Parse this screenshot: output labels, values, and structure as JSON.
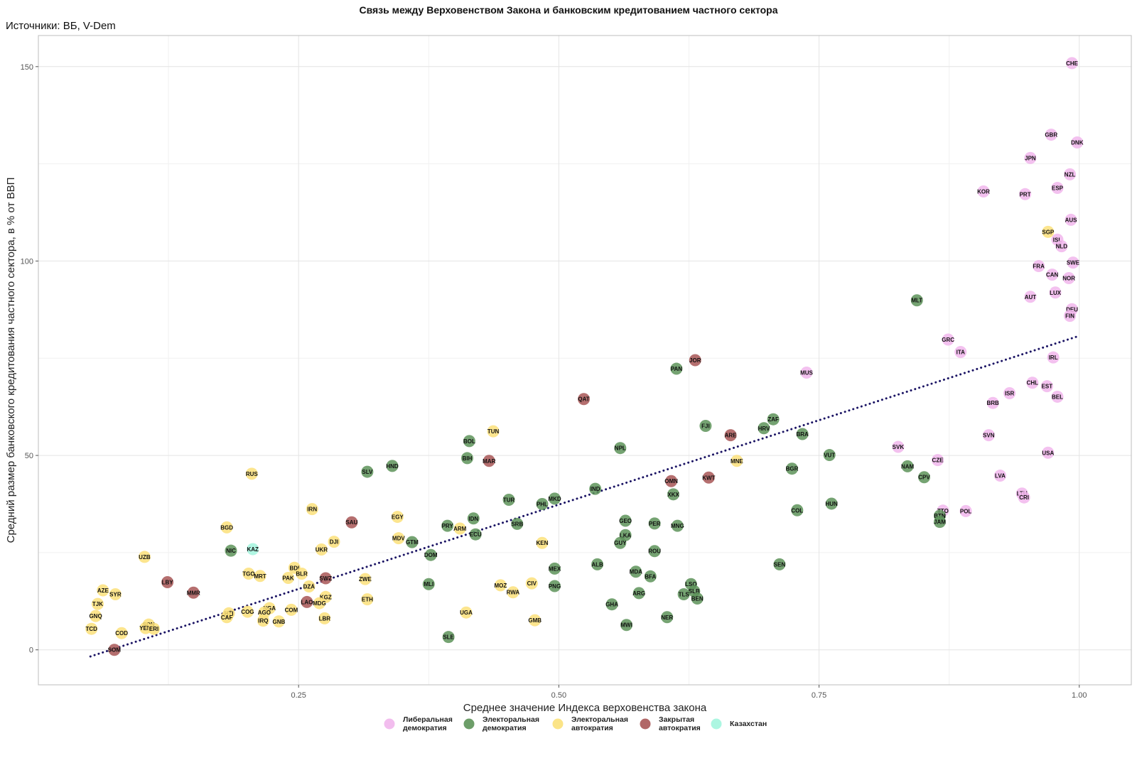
{
  "chart_data": {
    "type": "scatter",
    "title": "Связь между Верховенством Закона и банковским кредитованием частного сектора",
    "subtitle": "Источники: ВБ, V-Dem",
    "xlabel": "Среднее значение Индекса верховенства закона",
    "ylabel": "Средний размер банковского кредитования частного сектора, в % от ВВП",
    "xlim": [
      0.0,
      1.05
    ],
    "ylim": [
      -9,
      158
    ],
    "x_ticks": [
      0.25,
      0.5,
      0.75,
      1.0
    ],
    "x_tick_labels": [
      "0.25",
      "0.50",
      "0.75",
      "1.00"
    ],
    "y_ticks": [
      0,
      50,
      100,
      150
    ],
    "y_tick_labels": [
      "0",
      "50",
      "100",
      "150"
    ],
    "grid": true,
    "legend_position": "bottom",
    "trendline": {
      "style": "dotted",
      "color": "#1b1464",
      "x0": 0.05,
      "y0": -1.7,
      "x1": 0.997,
      "y1": 80.5
    },
    "categories": [
      {
        "key": "lib",
        "label": [
          "Либеральная",
          "демократия"
        ],
        "color": "#f1b6ec"
      },
      {
        "key": "eld",
        "label": [
          "Электоральная",
          "демократия"
        ],
        "color": "#5d9359"
      },
      {
        "key": "ela",
        "label": [
          "Электоральная",
          "автократия"
        ],
        "color": "#fbe17a"
      },
      {
        "key": "cla",
        "label": [
          "Закрытая",
          "автократия"
        ],
        "color": "#a85656"
      },
      {
        "key": "kaz",
        "label": [
          "Казахстан"
        ],
        "color": "#a3f5de"
      }
    ],
    "points": [
      {
        "c": "CHE",
        "x": 0.993,
        "y": 150.9,
        "g": "lib"
      },
      {
        "c": "GBR",
        "x": 0.973,
        "y": 132.5,
        "g": "lib"
      },
      {
        "c": "DNK",
        "x": 0.998,
        "y": 130.5,
        "g": "lib"
      },
      {
        "c": "JPN",
        "x": 0.953,
        "y": 126.5,
        "g": "lib"
      },
      {
        "c": "NZL",
        "x": 0.991,
        "y": 122.3,
        "g": "lib"
      },
      {
        "c": "ESP",
        "x": 0.979,
        "y": 118.8,
        "g": "lib"
      },
      {
        "c": "KOR",
        "x": 0.908,
        "y": 117.9,
        "g": "lib"
      },
      {
        "c": "PRT",
        "x": 0.948,
        "y": 117.2,
        "g": "lib"
      },
      {
        "c": "AUS",
        "x": 0.992,
        "y": 110.6,
        "g": "lib"
      },
      {
        "c": "SGP",
        "x": 0.97,
        "y": 107.5,
        "g": "ela"
      },
      {
        "c": "ISL",
        "x": 0.979,
        "y": 105.5,
        "g": "lib"
      },
      {
        "c": "NLD",
        "x": 0.983,
        "y": 103.8,
        "g": "lib"
      },
      {
        "c": "SWE",
        "x": 0.994,
        "y": 99.6,
        "g": "lib"
      },
      {
        "c": "FRA",
        "x": 0.961,
        "y": 98.7,
        "g": "lib"
      },
      {
        "c": "CAN",
        "x": 0.974,
        "y": 96.5,
        "g": "lib"
      },
      {
        "c": "NOR",
        "x": 0.99,
        "y": 95.6,
        "g": "lib"
      },
      {
        "c": "LUX",
        "x": 0.977,
        "y": 91.9,
        "g": "lib"
      },
      {
        "c": "AUT",
        "x": 0.953,
        "y": 90.8,
        "g": "lib"
      },
      {
        "c": "MLT",
        "x": 0.844,
        "y": 89.9,
        "g": "eld"
      },
      {
        "c": "DEU",
        "x": 0.993,
        "y": 87.6,
        "g": "lib"
      },
      {
        "c": "FIN",
        "x": 0.991,
        "y": 85.9,
        "g": "lib"
      },
      {
        "c": "GRC",
        "x": 0.874,
        "y": 79.8,
        "g": "lib"
      },
      {
        "c": "ITA",
        "x": 0.886,
        "y": 76.6,
        "g": "lib"
      },
      {
        "c": "IRL",
        "x": 0.975,
        "y": 75.2,
        "g": "lib"
      },
      {
        "c": "JOR",
        "x": 0.631,
        "y": 74.5,
        "g": "cla"
      },
      {
        "c": "PAN",
        "x": 0.613,
        "y": 72.3,
        "g": "eld"
      },
      {
        "c": "MUS",
        "x": 0.738,
        "y": 71.3,
        "g": "lib"
      },
      {
        "c": "CHL",
        "x": 0.955,
        "y": 68.7,
        "g": "lib"
      },
      {
        "c": "EST",
        "x": 0.969,
        "y": 67.8,
        "g": "lib"
      },
      {
        "c": "ISR",
        "x": 0.933,
        "y": 66.0,
        "g": "lib"
      },
      {
        "c": "BEL",
        "x": 0.979,
        "y": 65.1,
        "g": "lib"
      },
      {
        "c": "QAT",
        "x": 0.524,
        "y": 64.5,
        "g": "cla"
      },
      {
        "c": "BRB",
        "x": 0.917,
        "y": 63.5,
        "g": "lib"
      },
      {
        "c": "ZAF",
        "x": 0.706,
        "y": 59.3,
        "g": "eld"
      },
      {
        "c": "FJI",
        "x": 0.641,
        "y": 57.6,
        "g": "eld"
      },
      {
        "c": "HRV",
        "x": 0.697,
        "y": 57.0,
        "g": "eld"
      },
      {
        "c": "TUN",
        "x": 0.437,
        "y": 56.2,
        "g": "ela"
      },
      {
        "c": "BRA",
        "x": 0.734,
        "y": 55.5,
        "g": "eld"
      },
      {
        "c": "ARE",
        "x": 0.665,
        "y": 55.2,
        "g": "cla"
      },
      {
        "c": "SVN",
        "x": 0.913,
        "y": 55.2,
        "g": "lib"
      },
      {
        "c": "BOL",
        "x": 0.414,
        "y": 53.7,
        "g": "eld"
      },
      {
        "c": "SVK",
        "x": 0.826,
        "y": 52.2,
        "g": "lib"
      },
      {
        "c": "NPL",
        "x": 0.559,
        "y": 51.9,
        "g": "eld"
      },
      {
        "c": "USA",
        "x": 0.97,
        "y": 50.7,
        "g": "lib"
      },
      {
        "c": "VUT",
        "x": 0.76,
        "y": 50.1,
        "g": "eld"
      },
      {
        "c": "BIH",
        "x": 0.412,
        "y": 49.3,
        "g": "eld"
      },
      {
        "c": "MAR",
        "x": 0.433,
        "y": 48.6,
        "g": "cla"
      },
      {
        "c": "CZE",
        "x": 0.864,
        "y": 48.8,
        "g": "lib"
      },
      {
        "c": "MNE",
        "x": 0.671,
        "y": 48.6,
        "g": "ela"
      },
      {
        "c": "HND",
        "x": 0.34,
        "y": 47.3,
        "g": "eld"
      },
      {
        "c": "NAM",
        "x": 0.835,
        "y": 47.2,
        "g": "eld"
      },
      {
        "c": "BGR",
        "x": 0.724,
        "y": 46.6,
        "g": "eld"
      },
      {
        "c": "SLV",
        "x": 0.316,
        "y": 45.8,
        "g": "eld"
      },
      {
        "c": "RUS",
        "x": 0.205,
        "y": 45.3,
        "g": "ela"
      },
      {
        "c": "LVA",
        "x": 0.924,
        "y": 44.8,
        "g": "lib"
      },
      {
        "c": "KWT",
        "x": 0.644,
        "y": 44.3,
        "g": "cla"
      },
      {
        "c": "CPV",
        "x": 0.851,
        "y": 44.4,
        "g": "eld"
      },
      {
        "c": "OMN",
        "x": 0.608,
        "y": 43.4,
        "g": "cla"
      },
      {
        "c": "IND",
        "x": 0.535,
        "y": 41.4,
        "g": "eld"
      },
      {
        "c": "XKX",
        "x": 0.61,
        "y": 40.0,
        "g": "eld"
      },
      {
        "c": "LTU",
        "x": 0.945,
        "y": 40.2,
        "g": "lib"
      },
      {
        "c": "CRI",
        "x": 0.947,
        "y": 39.2,
        "g": "lib"
      },
      {
        "c": "TUR",
        "x": 0.452,
        "y": 38.6,
        "g": "eld"
      },
      {
        "c": "MKD",
        "x": 0.496,
        "y": 38.9,
        "g": "eld"
      },
      {
        "c": "HUN",
        "x": 0.762,
        "y": 37.6,
        "g": "eld"
      },
      {
        "c": "PHL",
        "x": 0.484,
        "y": 37.5,
        "g": "eld"
      },
      {
        "c": "IRN",
        "x": 0.263,
        "y": 36.2,
        "g": "ela"
      },
      {
        "c": "COL",
        "x": 0.729,
        "y": 35.9,
        "g": "eld"
      },
      {
        "c": "TTO",
        "x": 0.869,
        "y": 35.8,
        "g": "lib"
      },
      {
        "c": "POL",
        "x": 0.891,
        "y": 35.7,
        "g": "lib"
      },
      {
        "c": "BTN",
        "x": 0.866,
        "y": 34.5,
        "g": "eld"
      },
      {
        "c": "EGY",
        "x": 0.345,
        "y": 34.2,
        "g": "ela"
      },
      {
        "c": "IDN",
        "x": 0.418,
        "y": 33.8,
        "g": "eld"
      },
      {
        "c": "GEO",
        "x": 0.564,
        "y": 33.2,
        "g": "eld"
      },
      {
        "c": "JAM",
        "x": 0.866,
        "y": 32.9,
        "g": "eld"
      },
      {
        "c": "SAU",
        "x": 0.301,
        "y": 32.8,
        "g": "cla"
      },
      {
        "c": "PER",
        "x": 0.592,
        "y": 32.5,
        "g": "eld"
      },
      {
        "c": "SRB",
        "x": 0.46,
        "y": 32.4,
        "g": "eld"
      },
      {
        "c": "PRY",
        "x": 0.393,
        "y": 31.9,
        "g": "eld"
      },
      {
        "c": "MNG",
        "x": 0.614,
        "y": 31.9,
        "g": "eld"
      },
      {
        "c": "ARM",
        "x": 0.405,
        "y": 31.2,
        "g": "ela"
      },
      {
        "c": "BGD",
        "x": 0.181,
        "y": 31.5,
        "g": "ela"
      },
      {
        "c": "ECU",
        "x": 0.42,
        "y": 29.7,
        "g": "eld"
      },
      {
        "c": "LKA",
        "x": 0.564,
        "y": 29.5,
        "g": "eld"
      },
      {
        "c": "MDV",
        "x": 0.346,
        "y": 28.7,
        "g": "ela"
      },
      {
        "c": "DJI",
        "x": 0.284,
        "y": 27.8,
        "g": "ela"
      },
      {
        "c": "GTM",
        "x": 0.359,
        "y": 27.7,
        "g": "eld"
      },
      {
        "c": "GUY",
        "x": 0.559,
        "y": 27.5,
        "g": "eld"
      },
      {
        "c": "KEN",
        "x": 0.484,
        "y": 27.5,
        "g": "ela"
      },
      {
        "c": "KAZ",
        "x": 0.206,
        "y": 25.9,
        "g": "kaz"
      },
      {
        "c": "UKR",
        "x": 0.272,
        "y": 25.8,
        "g": "ela"
      },
      {
        "c": "NIC",
        "x": 0.185,
        "y": 25.5,
        "g": "eld"
      },
      {
        "c": "ROU",
        "x": 0.592,
        "y": 25.4,
        "g": "eld"
      },
      {
        "c": "DOM",
        "x": 0.377,
        "y": 24.4,
        "g": "eld"
      },
      {
        "c": "UZB",
        "x": 0.102,
        "y": 23.9,
        "g": "ela"
      },
      {
        "c": "SEN",
        "x": 0.712,
        "y": 22.0,
        "g": "eld"
      },
      {
        "c": "ALB",
        "x": 0.537,
        "y": 22.0,
        "g": "eld"
      },
      {
        "c": "MEX",
        "x": 0.496,
        "y": 20.9,
        "g": "eld"
      },
      {
        "c": "BDI",
        "x": 0.246,
        "y": 21.1,
        "g": "ela"
      },
      {
        "c": "MDA",
        "x": 0.574,
        "y": 20.1,
        "g": "eld"
      },
      {
        "c": "TGO",
        "x": 0.202,
        "y": 19.6,
        "g": "ela"
      },
      {
        "c": "BLR",
        "x": 0.253,
        "y": 19.6,
        "g": "ela"
      },
      {
        "c": "MRT",
        "x": 0.213,
        "y": 19.0,
        "g": "ela"
      },
      {
        "c": "BFA",
        "x": 0.588,
        "y": 18.9,
        "g": "eld"
      },
      {
        "c": "PAK",
        "x": 0.24,
        "y": 18.5,
        "g": "ela"
      },
      {
        "c": "ZWE",
        "x": 0.314,
        "y": 18.2,
        "g": "ela"
      },
      {
        "c": "SWZ",
        "x": 0.276,
        "y": 18.4,
        "g": "cla"
      },
      {
        "c": "LBY",
        "x": 0.124,
        "y": 17.4,
        "g": "cla"
      },
      {
        "c": "MLI",
        "x": 0.375,
        "y": 16.9,
        "g": "eld"
      },
      {
        "c": "CIV",
        "x": 0.474,
        "y": 17.1,
        "g": "ela"
      },
      {
        "c": "MOZ",
        "x": 0.444,
        "y": 16.6,
        "g": "ela"
      },
      {
        "c": "LSO",
        "x": 0.627,
        "y": 16.9,
        "g": "eld"
      },
      {
        "c": "PNG",
        "x": 0.496,
        "y": 16.4,
        "g": "eld"
      },
      {
        "c": "DZA",
        "x": 0.26,
        "y": 16.3,
        "g": "ela"
      },
      {
        "c": "SLB",
        "x": 0.63,
        "y": 15.1,
        "g": "eld"
      },
      {
        "c": "AZE",
        "x": 0.062,
        "y": 15.3,
        "g": "ela"
      },
      {
        "c": "SYR",
        "x": 0.074,
        "y": 14.3,
        "g": "ela"
      },
      {
        "c": "MMR",
        "x": 0.149,
        "y": 14.7,
        "g": "cla"
      },
      {
        "c": "RWA",
        "x": 0.456,
        "y": 14.8,
        "g": "ela"
      },
      {
        "c": "ARG",
        "x": 0.577,
        "y": 14.6,
        "g": "eld"
      },
      {
        "c": "TLS",
        "x": 0.62,
        "y": 14.3,
        "g": "eld"
      },
      {
        "c": "KGZ",
        "x": 0.276,
        "y": 13.6,
        "g": "ela"
      },
      {
        "c": "BEN",
        "x": 0.633,
        "y": 13.2,
        "g": "eld"
      },
      {
        "c": "ETH",
        "x": 0.316,
        "y": 13.0,
        "g": "ela"
      },
      {
        "c": "LAO",
        "x": 0.258,
        "y": 12.3,
        "g": "cla"
      },
      {
        "c": "MDG",
        "x": 0.27,
        "y": 12.0,
        "g": "ela"
      },
      {
        "c": "TJK",
        "x": 0.057,
        "y": 11.8,
        "g": "ela"
      },
      {
        "c": "GHA",
        "x": 0.551,
        "y": 11.7,
        "g": "eld"
      },
      {
        "c": "NGA",
        "x": 0.222,
        "y": 10.7,
        "g": "ela"
      },
      {
        "c": "COM",
        "x": 0.243,
        "y": 10.3,
        "g": "ela"
      },
      {
        "c": "COG",
        "x": 0.201,
        "y": 9.8,
        "g": "ela"
      },
      {
        "c": "AGO",
        "x": 0.217,
        "y": 9.6,
        "g": "ela"
      },
      {
        "c": "UGA",
        "x": 0.411,
        "y": 9.6,
        "g": "ela"
      },
      {
        "c": "HTI",
        "x": 0.183,
        "y": 9.4,
        "g": "ela"
      },
      {
        "c": "GNQ",
        "x": 0.055,
        "y": 8.7,
        "g": "ela"
      },
      {
        "c": "CAF",
        "x": 0.181,
        "y": 8.4,
        "g": "ela"
      },
      {
        "c": "NER",
        "x": 0.604,
        "y": 8.4,
        "g": "eld"
      },
      {
        "c": "LBR",
        "x": 0.275,
        "y": 8.1,
        "g": "ela"
      },
      {
        "c": "IRQ",
        "x": 0.216,
        "y": 7.5,
        "g": "ela"
      },
      {
        "c": "GNB",
        "x": 0.231,
        "y": 7.3,
        "g": "ela"
      },
      {
        "c": "GMB",
        "x": 0.477,
        "y": 7.6,
        "g": "ela"
      },
      {
        "c": "SDN",
        "x": 0.106,
        "y": 6.5,
        "g": "ela"
      },
      {
        "c": "MWI",
        "x": 0.565,
        "y": 6.4,
        "g": "eld"
      },
      {
        "c": "YEM",
        "x": 0.103,
        "y": 5.6,
        "g": "ela"
      },
      {
        "c": "TCD",
        "x": 0.051,
        "y": 5.4,
        "g": "ela"
      },
      {
        "c": "ERI",
        "x": 0.111,
        "y": 5.4,
        "g": "ela"
      },
      {
        "c": "COD",
        "x": 0.08,
        "y": 4.3,
        "g": "ela"
      },
      {
        "c": "SLE",
        "x": 0.394,
        "y": 3.3,
        "g": "eld"
      },
      {
        "c": "SOM",
        "x": 0.073,
        "y": 0.0,
        "g": "cla"
      }
    ]
  }
}
